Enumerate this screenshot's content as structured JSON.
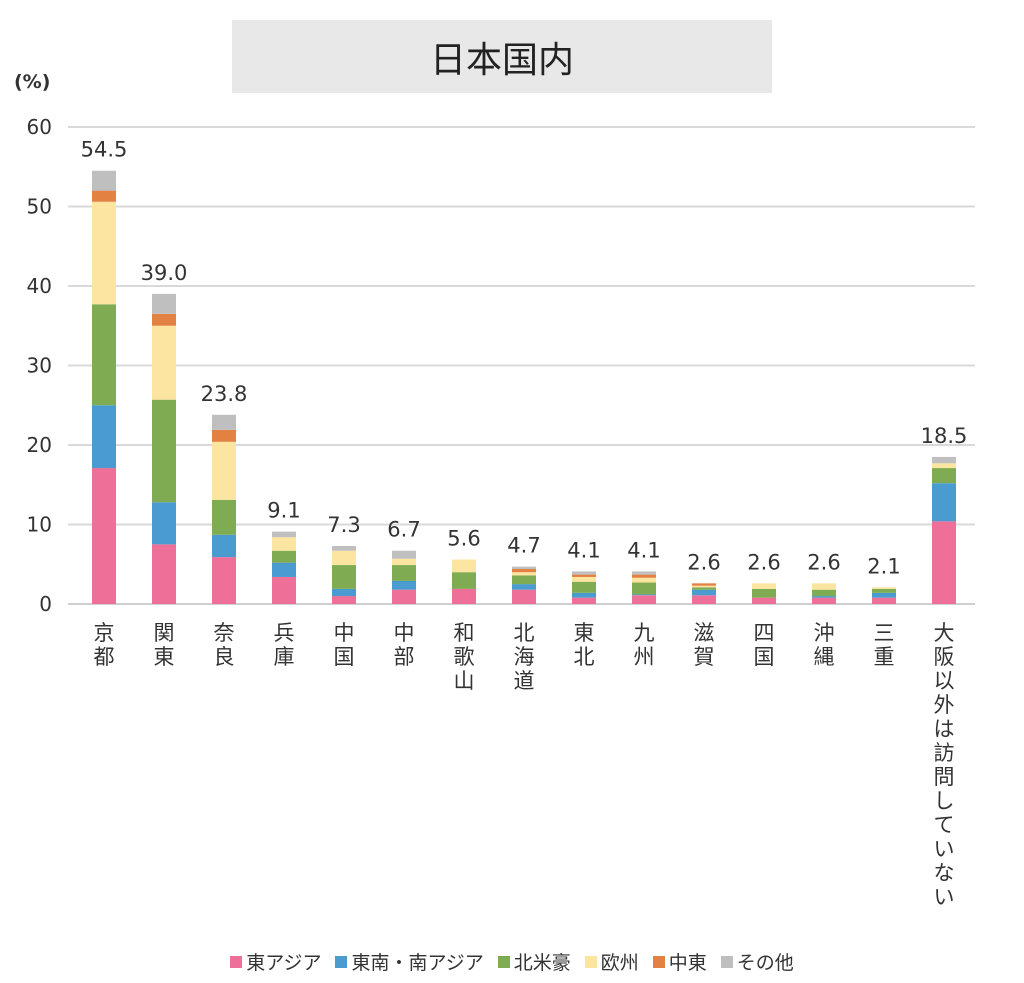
{
  "chart_data": {
    "type": "bar",
    "stacked": true,
    "title": "日本国内",
    "ylabel": "(%)",
    "xlabel": "",
    "ylim": [
      0,
      60
    ],
    "yticks": [
      0,
      10,
      20,
      30,
      40,
      50,
      60
    ],
    "grid": true,
    "legend_position": "bottom",
    "categories": [
      "京都",
      "関東",
      "奈良",
      "兵庫",
      "中国",
      "中部",
      "和歌山",
      "北海道",
      "東北",
      "九州",
      "滋賀",
      "四国",
      "沖縄",
      "三重",
      "大阪以外は訪問していない"
    ],
    "totals": [
      "54.5",
      "39.0",
      "23.8",
      "9.1",
      "7.3",
      "6.7",
      "5.6",
      "4.7",
      "4.1",
      "4.1",
      "2.6",
      "2.6",
      "2.6",
      "2.1",
      "18.5"
    ],
    "series": [
      {
        "name": "東アジア",
        "color": "#ee7099",
        "values": [
          17.1,
          7.5,
          5.9,
          3.4,
          1.0,
          1.8,
          1.9,
          1.8,
          0.8,
          1.1,
          1.1,
          0.8,
          0.8,
          0.8,
          10.4
        ]
      },
      {
        "name": "東南・南アジア",
        "color": "#4a9cd0",
        "values": [
          7.9,
          5.3,
          2.8,
          1.8,
          0.9,
          1.1,
          0.0,
          0.7,
          0.6,
          0.1,
          0.7,
          0.0,
          0.2,
          0.6,
          4.8
        ]
      },
      {
        "name": "北米豪",
        "color": "#7fab52",
        "values": [
          12.7,
          12.9,
          4.4,
          1.5,
          3.0,
          2.0,
          2.1,
          1.1,
          1.4,
          1.5,
          0.3,
          1.1,
          0.8,
          0.5,
          1.9
        ]
      },
      {
        "name": "欧州",
        "color": "#fbe5a0",
        "values": [
          12.9,
          9.3,
          7.3,
          1.7,
          1.8,
          0.8,
          1.6,
          0.4,
          0.6,
          0.6,
          0.2,
          0.7,
          0.8,
          0.2,
          0.6
        ]
      },
      {
        "name": "中東",
        "color": "#e38142",
        "values": [
          1.4,
          1.5,
          1.5,
          0.0,
          0.0,
          0.0,
          0.0,
          0.4,
          0.3,
          0.4,
          0.3,
          0.0,
          0.0,
          0.0,
          0.0
        ]
      },
      {
        "name": "その他",
        "color": "#bfbfbf",
        "values": [
          2.5,
          2.5,
          1.9,
          0.7,
          0.6,
          1.0,
          0.0,
          0.3,
          0.4,
          0.4,
          0.0,
          0.0,
          0.0,
          0.0,
          0.8
        ]
      }
    ]
  }
}
